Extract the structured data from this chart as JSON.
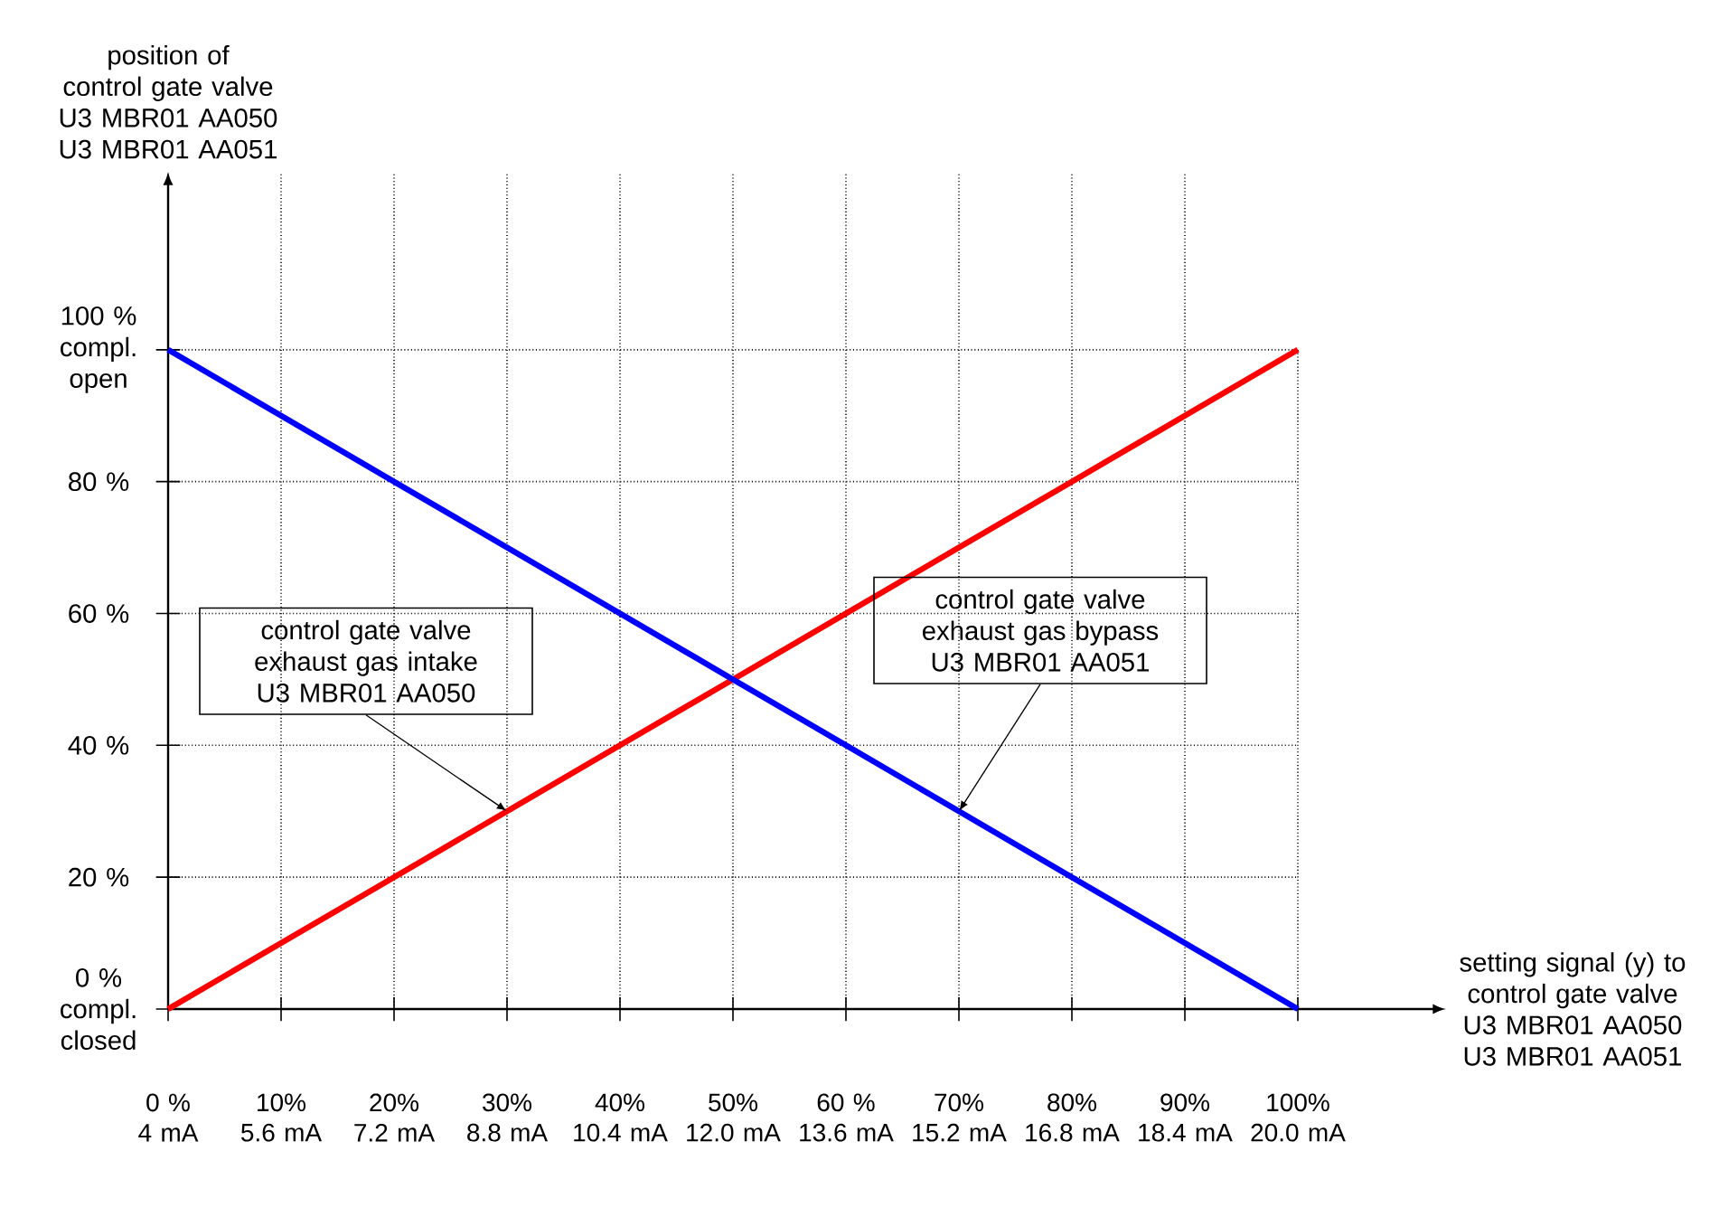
{
  "chart_data": {
    "type": "line",
    "categories": [
      "0 %\n4 mA",
      "10%\n5.6 mA",
      "20%\n7.2 mA",
      "30%\n8.8 mA",
      "40%\n10.4 mA",
      "50%\n12.0 mA",
      "60 %\n13.6 mA",
      "70%\n15.2 mA",
      "80%\n16.8 mA",
      "90%\n18.4 mA",
      "100%\n20.0 mA"
    ],
    "series": [
      {
        "color": "#ff0000",
        "values": [
          0,
          10,
          20,
          30,
          40,
          50,
          60,
          70,
          80,
          90,
          100
        ]
      },
      {
        "color": "#0000ff",
        "values": [
          100,
          90,
          80,
          70,
          60,
          50,
          40,
          30,
          20,
          10,
          0
        ]
      }
    ],
    "ylim": [
      0,
      127
    ],
    "yticks": [
      {
        "value": 0,
        "label": "0 %\ncompl.\nclosed"
      },
      {
        "value": 20,
        "label": "20 %"
      },
      {
        "value": 40,
        "label": "40 %"
      },
      {
        "value": 60,
        "label": "60 %"
      },
      {
        "value": 80,
        "label": "80 %"
      },
      {
        "value": 100,
        "label": "100 %\ncompl.\nopen"
      }
    ],
    "grid": true,
    "line_style": "solid",
    "marker": "none",
    "annotations": [
      "position of\ncontrol gate valve\nU3 MBR01 AA050\nU3 MBR01 AA051",
      "setting signal (y) to\ncontrol gate valve\nU3 MBR01 AA050\nU3 MBR01 AA051",
      {
        "text": "control gate valve exhaust gas intake U3 MBR01 AA050",
        "x": "30%\n8.8 mA",
        "y": 30
      },
      {
        "text": "control gate valve exhaust gas bypass U3 MBR01 AA051",
        "x": "70%\n15.2 mA",
        "y": 30
      }
    ]
  }
}
